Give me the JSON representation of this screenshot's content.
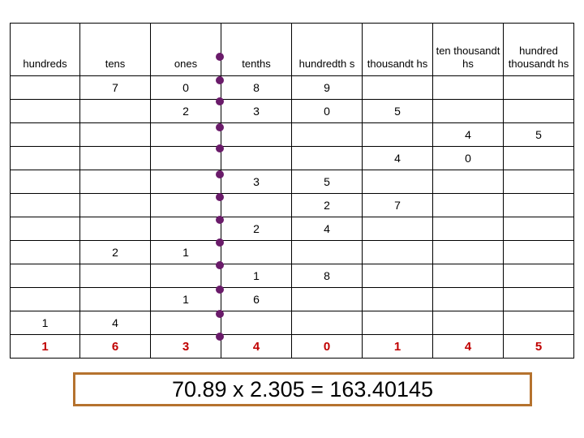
{
  "columns": [
    "hundreds",
    "tens",
    "ones",
    "tenths",
    "hundredth s",
    "thousandt hs",
    "ten thousandt hs",
    "hundred thousandt hs"
  ],
  "rows": [
    [
      "",
      "7",
      "0",
      "8",
      "9",
      "",
      "",
      ""
    ],
    [
      "",
      "",
      "2",
      "3",
      "0",
      "5",
      "",
      ""
    ],
    [
      "",
      "",
      "",
      "",
      "",
      "",
      "4",
      "5"
    ],
    [
      "",
      "",
      "",
      "",
      "",
      "4",
      "0",
      ""
    ],
    [
      "",
      "",
      "",
      "3",
      "5",
      "",
      "",
      ""
    ],
    [
      "",
      "",
      "",
      "",
      "2",
      "7",
      "",
      ""
    ],
    [
      "",
      "",
      "",
      "2",
      "4",
      "",
      "",
      ""
    ],
    [
      "",
      "2",
      "1",
      "",
      "",
      "",
      "",
      ""
    ],
    [
      "",
      "",
      "",
      "1",
      "8",
      "",
      "",
      ""
    ],
    [
      "",
      "",
      "1",
      "6",
      "",
      "",
      "",
      ""
    ],
    [
      "1",
      "4",
      "",
      "",
      "",
      "",
      "",
      ""
    ]
  ],
  "total_row": [
    "1",
    "6",
    "3",
    "4",
    "0",
    "1",
    "4",
    "5"
  ],
  "equation": "70.89 x 2.305 = 163.40145",
  "colors": {
    "total_text": "#c00000",
    "decimal_dot": "#6a1b6a",
    "box_border": "#b5722e"
  }
}
